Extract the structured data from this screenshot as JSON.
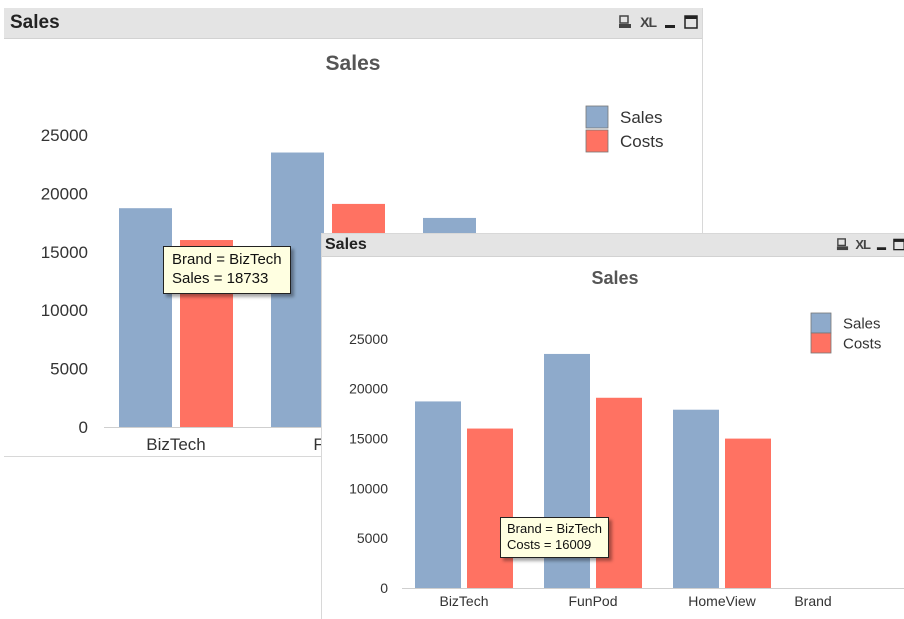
{
  "colors": {
    "sales": "#8eaacb",
    "costs": "#ff7262",
    "caption_bg": "#e4e4e4",
    "tooltip_bg": "#ffffe1"
  },
  "windows": {
    "back": {
      "caption_title": "Sales",
      "tools": {
        "print_icon": "print-icon",
        "xl_label": "XL",
        "minimize_icon": "minimize-icon",
        "maximize_icon": "maximize-icon"
      },
      "tooltip": {
        "line1": "Brand = BizTech",
        "line2": "Sales = 18733"
      }
    },
    "front": {
      "caption_title": "Sales",
      "tools": {
        "print_icon": "print-icon",
        "xl_label": "XL",
        "minimize_icon": "minimize-icon",
        "maximize_icon": "maximize-icon"
      },
      "tooltip": {
        "line1": "Brand = BizTech",
        "line2": "Costs = 16009"
      }
    }
  },
  "chart_data": [
    {
      "type": "bar",
      "title": "Sales",
      "categories": [
        "BizTech",
        "FunPod",
        "HomeView"
      ],
      "visible_category_labels": [
        "BizTech",
        "Fun"
      ],
      "series": [
        {
          "name": "Sales",
          "values": [
            18733,
            23500,
            17900
          ]
        },
        {
          "name": "Costs",
          "values": [
            16009,
            19100,
            15000
          ]
        }
      ],
      "yticks": [
        "0",
        "5000",
        "10000",
        "15000",
        "20000",
        "25000"
      ],
      "ylim": [
        0,
        25000
      ],
      "grid": false,
      "legend": "top-right"
    },
    {
      "type": "bar",
      "title": "Sales",
      "categories": [
        "BizTech",
        "FunPod",
        "HomeView"
      ],
      "xlabel": "Brand",
      "series": [
        {
          "name": "Sales",
          "values": [
            18733,
            23500,
            17900
          ]
        },
        {
          "name": "Costs",
          "values": [
            16009,
            19100,
            15000
          ]
        }
      ],
      "yticks": [
        "0",
        "5000",
        "10000",
        "15000",
        "20000",
        "25000"
      ],
      "ylim": [
        0,
        25000
      ],
      "grid": false,
      "legend": "top-right"
    }
  ]
}
